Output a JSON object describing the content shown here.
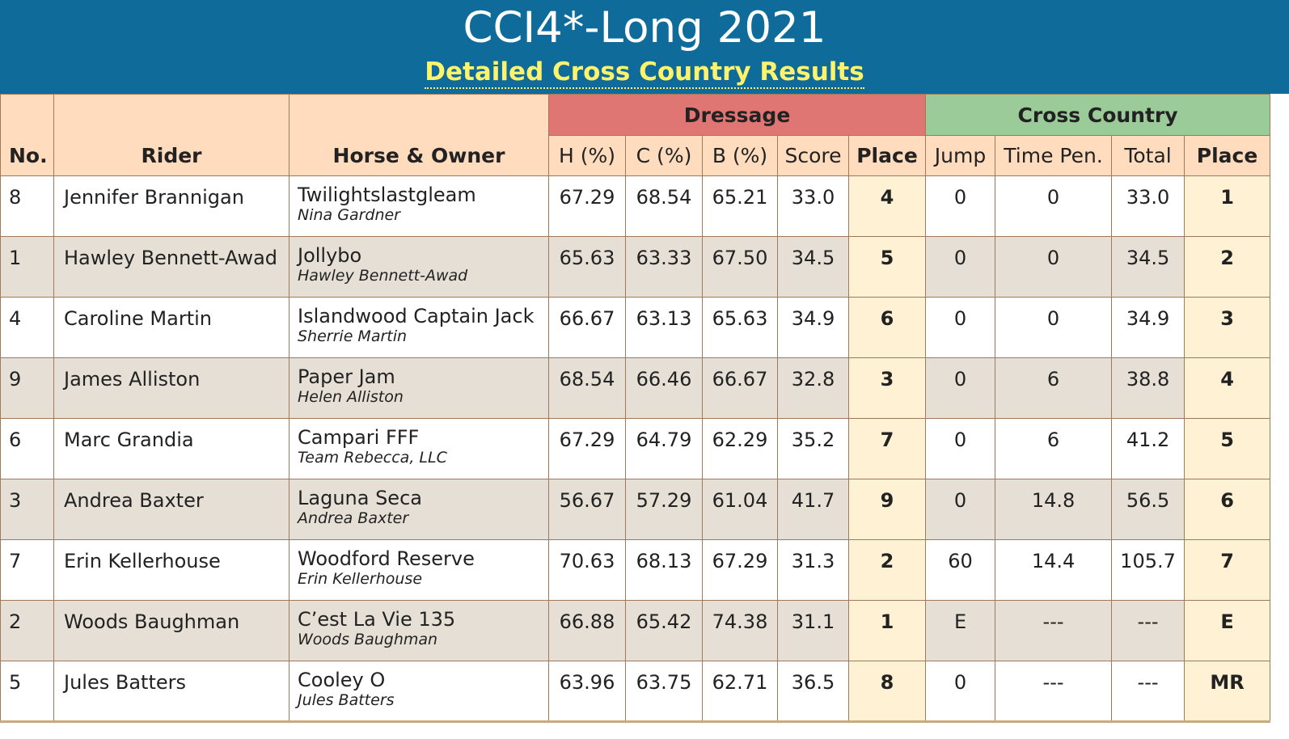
{
  "header": {
    "title": "CCI4*-Long 2021",
    "subtitle": "Detailed Cross Country Results"
  },
  "colors": {
    "banner": "#0e6b9a",
    "subtitle": "#fff36b",
    "header_bg": "#ffdcbe",
    "dressage_group": "#e07673",
    "cross_country_group": "#9acb98",
    "row_alt": "#e6dfd5",
    "place_col": "#fff1d3"
  },
  "table": {
    "groups": {
      "dressage": "Dressage",
      "cross_country": "Cross Country"
    },
    "columns": {
      "no": "No.",
      "rider": "Rider",
      "horse_owner": "Horse & Owner",
      "h": "H (%)",
      "c": "C (%)",
      "b": "B (%)",
      "score": "Score",
      "dressage_place": "Place",
      "jump": "Jump",
      "time_pen": "Time Pen.",
      "total": "Total",
      "xc_place": "Place"
    },
    "rows": [
      {
        "no": "8",
        "rider": "Jennifer Brannigan",
        "horse": "Twilightslastgleam",
        "owner": "Nina Gardner",
        "h": "67.29",
        "c": "68.54",
        "b": "65.21",
        "score": "33.0",
        "d_place": "4",
        "jump": "0",
        "time_pen": "0",
        "total": "33.0",
        "xc_place": "1"
      },
      {
        "no": "1",
        "rider": "Hawley Bennett-Awad",
        "horse": "Jollybo",
        "owner": "Hawley Bennett-Awad",
        "h": "65.63",
        "c": "63.33",
        "b": "67.50",
        "score": "34.5",
        "d_place": "5",
        "jump": "0",
        "time_pen": "0",
        "total": "34.5",
        "xc_place": "2"
      },
      {
        "no": "4",
        "rider": "Caroline Martin",
        "horse": "Islandwood Captain Jack",
        "owner": "Sherrie Martin",
        "h": "66.67",
        "c": "63.13",
        "b": "65.63",
        "score": "34.9",
        "d_place": "6",
        "jump": "0",
        "time_pen": "0",
        "total": "34.9",
        "xc_place": "3"
      },
      {
        "no": "9",
        "rider": "James Alliston",
        "horse": "Paper Jam",
        "owner": "Helen Alliston",
        "h": "68.54",
        "c": "66.46",
        "b": "66.67",
        "score": "32.8",
        "d_place": "3",
        "jump": "0",
        "time_pen": "6",
        "total": "38.8",
        "xc_place": "4"
      },
      {
        "no": "6",
        "rider": "Marc Grandia",
        "horse": "Campari FFF",
        "owner": "Team Rebecca, LLC",
        "h": "67.29",
        "c": "64.79",
        "b": "62.29",
        "score": "35.2",
        "d_place": "7",
        "jump": "0",
        "time_pen": "6",
        "total": "41.2",
        "xc_place": "5"
      },
      {
        "no": "3",
        "rider": "Andrea Baxter",
        "horse": "Laguna Seca",
        "owner": "Andrea Baxter",
        "h": "56.67",
        "c": "57.29",
        "b": "61.04",
        "score": "41.7",
        "d_place": "9",
        "jump": "0",
        "time_pen": "14.8",
        "total": "56.5",
        "xc_place": "6"
      },
      {
        "no": "7",
        "rider": "Erin Kellerhouse",
        "horse": "Woodford Reserve",
        "owner": "Erin Kellerhouse",
        "h": "70.63",
        "c": "68.13",
        "b": "67.29",
        "score": "31.3",
        "d_place": "2",
        "jump": "60",
        "time_pen": "14.4",
        "total": "105.7",
        "xc_place": "7"
      },
      {
        "no": "2",
        "rider": "Woods Baughman",
        "horse": "C’est La Vie 135",
        "owner": "Woods Baughman",
        "h": "66.88",
        "c": "65.42",
        "b": "74.38",
        "score": "31.1",
        "d_place": "1",
        "jump": "E",
        "time_pen": "---",
        "total": "---",
        "xc_place": "E"
      },
      {
        "no": "5",
        "rider": "Jules Batters",
        "horse": "Cooley O",
        "owner": "Jules Batters",
        "h": "63.96",
        "c": "63.75",
        "b": "62.71",
        "score": "36.5",
        "d_place": "8",
        "jump": "0",
        "time_pen": "---",
        "total": "---",
        "xc_place": "MR"
      }
    ]
  }
}
